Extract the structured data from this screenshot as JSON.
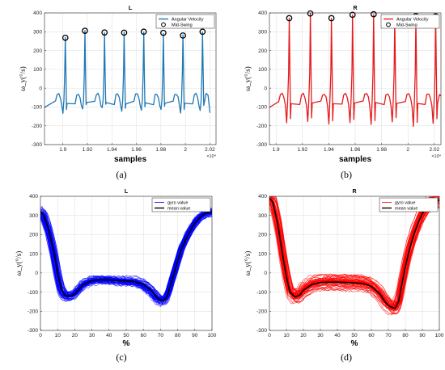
{
  "captions": [
    "(a)",
    "(b)",
    "(c)",
    "(d)"
  ],
  "chart_data": [
    {
      "type": "line",
      "title": "L",
      "xlabel": "samples",
      "ylabel": "ω_y(°/s)",
      "x_multiplier_label": "×10⁴",
      "xlim": [
        1.885,
        2.025
      ],
      "ylim": [
        -300,
        400
      ],
      "xticks": [
        1.9,
        1.92,
        1.94,
        1.96,
        1.98,
        2.0,
        2.02
      ],
      "xticklabels": [
        "1.9",
        "1.92",
        "1.94",
        "1.96",
        "1.98",
        "2",
        "2.02"
      ],
      "yticks": [
        -300,
        -200,
        -100,
        0,
        100,
        200,
        300,
        400
      ],
      "grid": true,
      "legend_position": "top-right",
      "series": [
        {
          "name": "Angular Velocity",
          "color": "#1f77b4",
          "kind": "line",
          "peaks_x": [
            1.902,
            1.918,
            1.934,
            1.95,
            1.966,
            1.982,
            1.998,
            2.014
          ],
          "peaks_y": [
            268,
            305,
            296,
            295,
            300,
            294,
            280,
            300
          ],
          "troughs_y": [
            -130,
            -110,
            -105,
            -125,
            -120,
            -112,
            -130,
            -115
          ],
          "end_y": -130
        },
        {
          "name": "Mid-Swing",
          "color": "#000000",
          "kind": "marker",
          "x": [
            1.902,
            1.918,
            1.934,
            1.95,
            1.966,
            1.982,
            1.998,
            2.014
          ],
          "y": [
            268,
            305,
            296,
            295,
            300,
            294,
            280,
            300
          ]
        }
      ]
    },
    {
      "type": "line",
      "title": "R",
      "xlabel": "samples",
      "ylabel": "ω_y(°/s)",
      "x_multiplier_label": "×10⁴",
      "xlim": [
        1.895,
        2.025
      ],
      "ylim": [
        -300,
        400
      ],
      "xticks": [
        1.9,
        1.92,
        1.94,
        1.96,
        1.98,
        2.0,
        2.02
      ],
      "xticklabels": [
        "1.9",
        "1.92",
        "1.94",
        "1.96",
        "1.98",
        "2",
        "2.02"
      ],
      "yticks": [
        -300,
        -200,
        -100,
        0,
        100,
        200,
        300,
        400
      ],
      "grid": true,
      "legend_position": "top-right",
      "series": [
        {
          "name": "Angular Velocity",
          "color": "#e41a1c",
          "kind": "line",
          "peaks_x": [
            1.91,
            1.926,
            1.942,
            1.958,
            1.974,
            1.99,
            2.006,
            2.021
          ],
          "peaks_y": [
            372,
            397,
            372,
            390,
            393,
            366,
            383,
            382
          ],
          "troughs_y": [
            -180,
            -175,
            -195,
            -185,
            -190,
            -175,
            -200,
            -185
          ],
          "end_y": -130
        },
        {
          "name": "Mid-Swing",
          "color": "#000000",
          "kind": "marker",
          "x": [
            1.91,
            1.926,
            1.942,
            1.958,
            1.974,
            1.99,
            2.006,
            2.021
          ],
          "y": [
            372,
            397,
            372,
            390,
            393,
            366,
            383,
            382
          ]
        }
      ]
    },
    {
      "type": "line",
      "title": "L",
      "xlabel": "%",
      "ylabel": "ω_y(°/s)",
      "xlim": [
        0,
        100
      ],
      "ylim": [
        -300,
        400
      ],
      "xticks": [
        0,
        10,
        20,
        30,
        40,
        50,
        60,
        70,
        80,
        90,
        100
      ],
      "yticks": [
        -300,
        -200,
        -100,
        0,
        100,
        200,
        300,
        400
      ],
      "grid": true,
      "legend_position": "top-right",
      "series": [
        {
          "name": "gyro value",
          "color": "#0000ff",
          "kind": "band",
          "band_halfwidth": 28,
          "x": [
            0,
            2,
            5,
            8,
            10,
            12,
            14,
            16,
            18,
            20,
            22,
            25,
            30,
            35,
            40,
            45,
            50,
            55,
            60,
            65,
            68,
            70,
            72,
            74,
            76,
            78,
            80,
            82,
            85,
            88,
            90,
            93,
            96,
            100
          ],
          "y": [
            320,
            300,
            220,
            100,
            0,
            -80,
            -115,
            -120,
            -120,
            -110,
            -90,
            -60,
            -40,
            -35,
            -37,
            -40,
            -42,
            -45,
            -60,
            -95,
            -130,
            -140,
            -145,
            -120,
            -60,
            0,
            60,
            120,
            180,
            230,
            260,
            290,
            310,
            320
          ]
        },
        {
          "name": "mean value",
          "color": "#000000",
          "kind": "line",
          "x": [
            0,
            2,
            5,
            8,
            10,
            12,
            14,
            16,
            18,
            20,
            22,
            25,
            30,
            35,
            40,
            45,
            50,
            55,
            60,
            65,
            68,
            70,
            72,
            74,
            76,
            78,
            80,
            82,
            85,
            88,
            90,
            93,
            96,
            100
          ],
          "y": [
            320,
            300,
            220,
            100,
            0,
            -80,
            -115,
            -120,
            -120,
            -110,
            -90,
            -60,
            -40,
            -35,
            -37,
            -40,
            -42,
            -45,
            -60,
            -95,
            -130,
            -140,
            -145,
            -120,
            -60,
            0,
            60,
            120,
            180,
            230,
            260,
            290,
            310,
            320
          ]
        }
      ]
    },
    {
      "type": "line",
      "title": "R",
      "xlabel": "%",
      "ylabel": "ω_y(°/s)",
      "xlim": [
        0,
        100
      ],
      "ylim": [
        -300,
        400
      ],
      "xticks": [
        0,
        10,
        20,
        30,
        40,
        50,
        60,
        70,
        80,
        90,
        100
      ],
      "yticks": [
        -300,
        -200,
        -100,
        0,
        100,
        200,
        300,
        400
      ],
      "grid": true,
      "legend_position": "top-right",
      "series": [
        {
          "name": "gyro value",
          "color": "#ff0000",
          "kind": "band",
          "band_halfwidth": 45,
          "x": [
            0,
            2,
            5,
            8,
            10,
            12,
            15,
            18,
            20,
            25,
            30,
            35,
            40,
            45,
            50,
            55,
            60,
            65,
            68,
            70,
            72,
            74,
            76,
            78,
            80,
            82,
            85,
            88,
            90,
            93,
            96,
            100
          ],
          "y": [
            390,
            370,
            250,
            80,
            -20,
            -100,
            -125,
            -115,
            -90,
            -60,
            -50,
            -48,
            -48,
            -50,
            -52,
            -55,
            -70,
            -110,
            -150,
            -170,
            -180,
            -185,
            -150,
            -60,
            30,
            110,
            200,
            270,
            310,
            350,
            370,
            380
          ]
        },
        {
          "name": "mean value",
          "color": "#000000",
          "kind": "line",
          "x": [
            0,
            2,
            5,
            8,
            10,
            12,
            15,
            18,
            20,
            25,
            30,
            35,
            40,
            45,
            50,
            55,
            60,
            65,
            68,
            70,
            72,
            74,
            76,
            78,
            80,
            82,
            85,
            88,
            90,
            93,
            96,
            100
          ],
          "y": [
            390,
            370,
            250,
            80,
            -20,
            -100,
            -125,
            -115,
            -90,
            -60,
            -50,
            -48,
            -48,
            -50,
            -52,
            -55,
            -70,
            -110,
            -150,
            -170,
            -180,
            -185,
            -150,
            -60,
            30,
            110,
            200,
            270,
            310,
            350,
            370,
            380
          ]
        }
      ]
    }
  ]
}
